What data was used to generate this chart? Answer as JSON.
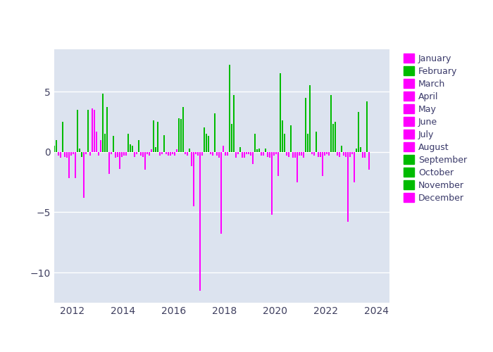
{
  "background_color": "#dce3ef",
  "outer_background": "#ffffff",
  "bar_width": 0.055,
  "xlim": [
    2011.3,
    2024.5
  ],
  "ylim": [
    -12.5,
    8.5
  ],
  "yticks": [
    -10,
    -5,
    0,
    5
  ],
  "xticks": [
    2012,
    2014,
    2016,
    2018,
    2020,
    2022,
    2024
  ],
  "legend_months": [
    "January",
    "February",
    "March",
    "April",
    "May",
    "June",
    "July",
    "August",
    "September",
    "October",
    "November",
    "December"
  ],
  "legend_colors": [
    "#ff00ff",
    "#00bb00",
    "#ff00ff",
    "#ff00ff",
    "#ff00ff",
    "#ff00ff",
    "#ff00ff",
    "#ff00ff",
    "#00bb00",
    "#00bb00",
    "#00bb00",
    "#ff00ff"
  ],
  "data": [
    {
      "year": 2011,
      "month": 10,
      "value": 0.5
    },
    {
      "year": 2011,
      "month": 11,
      "value": 1.0
    },
    {
      "year": 2011,
      "month": 12,
      "value": -0.3
    },
    {
      "year": 2012,
      "month": 1,
      "value": -0.5
    },
    {
      "year": 2012,
      "month": 2,
      "value": 2.5
    },
    {
      "year": 2012,
      "month": 3,
      "value": -0.4
    },
    {
      "year": 2012,
      "month": 4,
      "value": -0.5
    },
    {
      "year": 2012,
      "month": 5,
      "value": -2.2
    },
    {
      "year": 2012,
      "month": 6,
      "value": -0.3
    },
    {
      "year": 2012,
      "month": 7,
      "value": -0.2
    },
    {
      "year": 2012,
      "month": 8,
      "value": -2.2
    },
    {
      "year": 2012,
      "month": 9,
      "value": 3.5
    },
    {
      "year": 2012,
      "month": 10,
      "value": 0.3
    },
    {
      "year": 2012,
      "month": 11,
      "value": -0.4
    },
    {
      "year": 2012,
      "month": 12,
      "value": -3.8
    },
    {
      "year": 2013,
      "month": 1,
      "value": -0.2
    },
    {
      "year": 2013,
      "month": 2,
      "value": 3.5
    },
    {
      "year": 2013,
      "month": 3,
      "value": -0.3
    },
    {
      "year": 2013,
      "month": 4,
      "value": 3.6
    },
    {
      "year": 2013,
      "month": 5,
      "value": 3.5
    },
    {
      "year": 2013,
      "month": 6,
      "value": 1.7
    },
    {
      "year": 2013,
      "month": 7,
      "value": -0.3
    },
    {
      "year": 2013,
      "month": 8,
      "value": 1.0
    },
    {
      "year": 2013,
      "month": 9,
      "value": 4.8
    },
    {
      "year": 2013,
      "month": 10,
      "value": 1.5
    },
    {
      "year": 2013,
      "month": 11,
      "value": 3.7
    },
    {
      "year": 2013,
      "month": 12,
      "value": -1.8
    },
    {
      "year": 2014,
      "month": 1,
      "value": -0.2
    },
    {
      "year": 2014,
      "month": 2,
      "value": 1.3
    },
    {
      "year": 2014,
      "month": 3,
      "value": -0.5
    },
    {
      "year": 2014,
      "month": 4,
      "value": -0.4
    },
    {
      "year": 2014,
      "month": 5,
      "value": -1.4
    },
    {
      "year": 2014,
      "month": 6,
      "value": -0.4
    },
    {
      "year": 2014,
      "month": 7,
      "value": -0.3
    },
    {
      "year": 2014,
      "month": 8,
      "value": -0.3
    },
    {
      "year": 2014,
      "month": 9,
      "value": 1.5
    },
    {
      "year": 2014,
      "month": 10,
      "value": 0.6
    },
    {
      "year": 2014,
      "month": 11,
      "value": 0.5
    },
    {
      "year": 2014,
      "month": 12,
      "value": -0.4
    },
    {
      "year": 2015,
      "month": 1,
      "value": -0.2
    },
    {
      "year": 2015,
      "month": 2,
      "value": 1.0
    },
    {
      "year": 2015,
      "month": 3,
      "value": -0.3
    },
    {
      "year": 2015,
      "month": 4,
      "value": -0.4
    },
    {
      "year": 2015,
      "month": 5,
      "value": -1.5
    },
    {
      "year": 2015,
      "month": 6,
      "value": -0.2
    },
    {
      "year": 2015,
      "month": 7,
      "value": -0.3
    },
    {
      "year": 2015,
      "month": 8,
      "value": 0.2
    },
    {
      "year": 2015,
      "month": 9,
      "value": 2.6
    },
    {
      "year": 2015,
      "month": 10,
      "value": 0.4
    },
    {
      "year": 2015,
      "month": 11,
      "value": 2.5
    },
    {
      "year": 2015,
      "month": 12,
      "value": -0.3
    },
    {
      "year": 2016,
      "month": 1,
      "value": -0.2
    },
    {
      "year": 2016,
      "month": 2,
      "value": 1.4
    },
    {
      "year": 2016,
      "month": 3,
      "value": -0.2
    },
    {
      "year": 2016,
      "month": 4,
      "value": -0.3
    },
    {
      "year": 2016,
      "month": 5,
      "value": -0.3
    },
    {
      "year": 2016,
      "month": 6,
      "value": -0.2
    },
    {
      "year": 2016,
      "month": 7,
      "value": -0.3
    },
    {
      "year": 2016,
      "month": 8,
      "value": 0.2
    },
    {
      "year": 2016,
      "month": 9,
      "value": 2.8
    },
    {
      "year": 2016,
      "month": 10,
      "value": 2.7
    },
    {
      "year": 2016,
      "month": 11,
      "value": 3.7
    },
    {
      "year": 2016,
      "month": 12,
      "value": -0.2
    },
    {
      "year": 2017,
      "month": 1,
      "value": -0.3
    },
    {
      "year": 2017,
      "month": 2,
      "value": 0.3
    },
    {
      "year": 2017,
      "month": 3,
      "value": -1.2
    },
    {
      "year": 2017,
      "month": 4,
      "value": -4.5
    },
    {
      "year": 2017,
      "month": 5,
      "value": -0.2
    },
    {
      "year": 2017,
      "month": 6,
      "value": -0.3
    },
    {
      "year": 2017,
      "month": 7,
      "value": -11.5
    },
    {
      "year": 2017,
      "month": 8,
      "value": -0.3
    },
    {
      "year": 2017,
      "month": 9,
      "value": 2.0
    },
    {
      "year": 2017,
      "month": 10,
      "value": 1.5
    },
    {
      "year": 2017,
      "month": 11,
      "value": 1.3
    },
    {
      "year": 2017,
      "month": 12,
      "value": -0.2
    },
    {
      "year": 2018,
      "month": 1,
      "value": -0.3
    },
    {
      "year": 2018,
      "month": 2,
      "value": 3.2
    },
    {
      "year": 2018,
      "month": 3,
      "value": -0.3
    },
    {
      "year": 2018,
      "month": 4,
      "value": -0.5
    },
    {
      "year": 2018,
      "month": 5,
      "value": -6.8
    },
    {
      "year": 2018,
      "month": 6,
      "value": 0.5
    },
    {
      "year": 2018,
      "month": 7,
      "value": -0.3
    },
    {
      "year": 2018,
      "month": 8,
      "value": -0.3
    },
    {
      "year": 2018,
      "month": 9,
      "value": 7.2
    },
    {
      "year": 2018,
      "month": 10,
      "value": 2.3
    },
    {
      "year": 2018,
      "month": 11,
      "value": 4.7
    },
    {
      "year": 2018,
      "month": 12,
      "value": -0.5
    },
    {
      "year": 2019,
      "month": 1,
      "value": -0.2
    },
    {
      "year": 2019,
      "month": 2,
      "value": 0.4
    },
    {
      "year": 2019,
      "month": 3,
      "value": -0.5
    },
    {
      "year": 2019,
      "month": 4,
      "value": -0.5
    },
    {
      "year": 2019,
      "month": 5,
      "value": -0.2
    },
    {
      "year": 2019,
      "month": 6,
      "value": -0.2
    },
    {
      "year": 2019,
      "month": 7,
      "value": -0.3
    },
    {
      "year": 2019,
      "month": 8,
      "value": -1.0
    },
    {
      "year": 2019,
      "month": 9,
      "value": 1.5
    },
    {
      "year": 2019,
      "month": 10,
      "value": 0.2
    },
    {
      "year": 2019,
      "month": 11,
      "value": 0.3
    },
    {
      "year": 2019,
      "month": 12,
      "value": -0.3
    },
    {
      "year": 2020,
      "month": 1,
      "value": -0.3
    },
    {
      "year": 2020,
      "month": 2,
      "value": 0.3
    },
    {
      "year": 2020,
      "month": 3,
      "value": -0.4
    },
    {
      "year": 2020,
      "month": 4,
      "value": -0.5
    },
    {
      "year": 2020,
      "month": 5,
      "value": -5.2
    },
    {
      "year": 2020,
      "month": 6,
      "value": -0.3
    },
    {
      "year": 2020,
      "month": 7,
      "value": -0.2
    },
    {
      "year": 2020,
      "month": 8,
      "value": -2.0
    },
    {
      "year": 2020,
      "month": 9,
      "value": 6.5
    },
    {
      "year": 2020,
      "month": 10,
      "value": 2.6
    },
    {
      "year": 2020,
      "month": 11,
      "value": 1.5
    },
    {
      "year": 2020,
      "month": 12,
      "value": -0.3
    },
    {
      "year": 2021,
      "month": 1,
      "value": -0.4
    },
    {
      "year": 2021,
      "month": 2,
      "value": 2.2
    },
    {
      "year": 2021,
      "month": 3,
      "value": -0.5
    },
    {
      "year": 2021,
      "month": 4,
      "value": -0.5
    },
    {
      "year": 2021,
      "month": 5,
      "value": -2.5
    },
    {
      "year": 2021,
      "month": 6,
      "value": -0.3
    },
    {
      "year": 2021,
      "month": 7,
      "value": -0.3
    },
    {
      "year": 2021,
      "month": 8,
      "value": -0.5
    },
    {
      "year": 2021,
      "month": 9,
      "value": 4.5
    },
    {
      "year": 2021,
      "month": 10,
      "value": 1.5
    },
    {
      "year": 2021,
      "month": 11,
      "value": 5.5
    },
    {
      "year": 2021,
      "month": 12,
      "value": -0.2
    },
    {
      "year": 2022,
      "month": 1,
      "value": -0.3
    },
    {
      "year": 2022,
      "month": 2,
      "value": 1.7
    },
    {
      "year": 2022,
      "month": 3,
      "value": -0.4
    },
    {
      "year": 2022,
      "month": 4,
      "value": -0.4
    },
    {
      "year": 2022,
      "month": 5,
      "value": -2.0
    },
    {
      "year": 2022,
      "month": 6,
      "value": -0.3
    },
    {
      "year": 2022,
      "month": 7,
      "value": -0.2
    },
    {
      "year": 2022,
      "month": 8,
      "value": -0.3
    },
    {
      "year": 2022,
      "month": 9,
      "value": 4.7
    },
    {
      "year": 2022,
      "month": 10,
      "value": 2.3
    },
    {
      "year": 2022,
      "month": 11,
      "value": 2.5
    },
    {
      "year": 2022,
      "month": 12,
      "value": -0.3
    },
    {
      "year": 2023,
      "month": 1,
      "value": -0.4
    },
    {
      "year": 2023,
      "month": 2,
      "value": 0.5
    },
    {
      "year": 2023,
      "month": 3,
      "value": -0.3
    },
    {
      "year": 2023,
      "month": 4,
      "value": -0.4
    },
    {
      "year": 2023,
      "month": 5,
      "value": -5.8
    },
    {
      "year": 2023,
      "month": 6,
      "value": -0.4
    },
    {
      "year": 2023,
      "month": 7,
      "value": -0.2
    },
    {
      "year": 2023,
      "month": 8,
      "value": -2.5
    },
    {
      "year": 2023,
      "month": 9,
      "value": 0.3
    },
    {
      "year": 2023,
      "month": 10,
      "value": 3.3
    },
    {
      "year": 2023,
      "month": 11,
      "value": 0.4
    },
    {
      "year": 2023,
      "month": 12,
      "value": -0.5
    },
    {
      "year": 2024,
      "month": 1,
      "value": -0.5
    },
    {
      "year": 2024,
      "month": 2,
      "value": 4.2
    },
    {
      "year": 2024,
      "month": 3,
      "value": -1.5
    }
  ],
  "month_colors": {
    "1": "#ff00ff",
    "2": "#00bb00",
    "3": "#ff00ff",
    "4": "#ff00ff",
    "5": "#ff00ff",
    "6": "#ff00ff",
    "7": "#ff00ff",
    "8": "#ff00ff",
    "9": "#00bb00",
    "10": "#00bb00",
    "11": "#00bb00",
    "12": "#ff00ff"
  }
}
